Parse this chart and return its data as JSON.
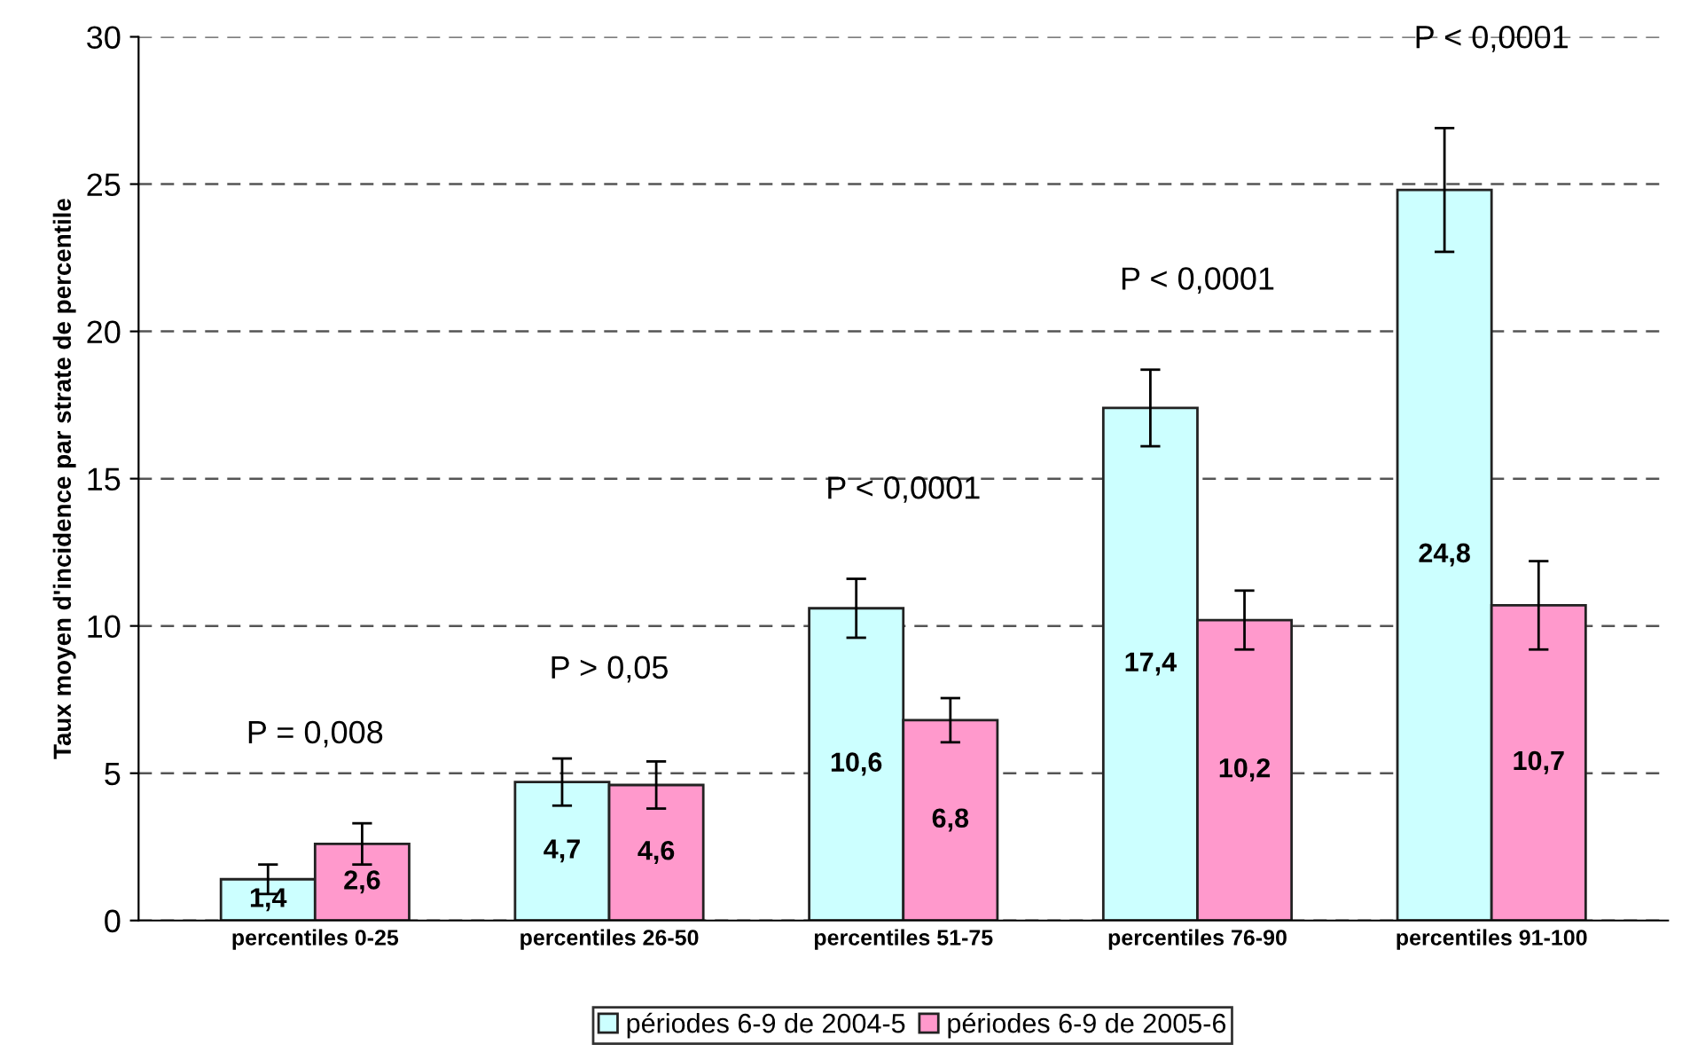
{
  "chart_data": {
    "type": "bar",
    "ylabel": "Taux moyen d'incidence par strate de percentile",
    "categories": [
      "percentiles 0-25",
      "percentiles 26-50",
      "percentiles 51-75",
      "percentiles 76-90",
      "percentiles 91-100"
    ],
    "series": [
      {
        "name": "périodes 6-9 de 2004-5",
        "color": "#ccffff",
        "values": [
          1.4,
          4.7,
          10.6,
          17.4,
          24.8
        ],
        "errors": [
          0.5,
          0.8,
          1.0,
          1.3,
          2.1
        ],
        "value_labels": [
          "1,4",
          "4,7",
          "10,6",
          "17,4",
          "24,8"
        ]
      },
      {
        "name": "périodes 6-9 de 2005-6",
        "color": "#ff99cc",
        "values": [
          2.6,
          4.6,
          6.8,
          10.2,
          10.7
        ],
        "errors": [
          0.7,
          0.8,
          0.75,
          1.0,
          1.5
        ],
        "value_labels": [
          "2,6",
          "4,6",
          "6,8",
          "10,2",
          "10,7"
        ]
      }
    ],
    "ylim": [
      0,
      30
    ],
    "yticks": [
      0,
      5,
      10,
      15,
      20,
      25,
      30
    ],
    "grid": "y",
    "legend": "bottom",
    "annotations": [
      "P = 0,008",
      "P > 0,05",
      "P < 0,0001",
      "P < 0,0001",
      "P < 0,0001"
    ]
  }
}
